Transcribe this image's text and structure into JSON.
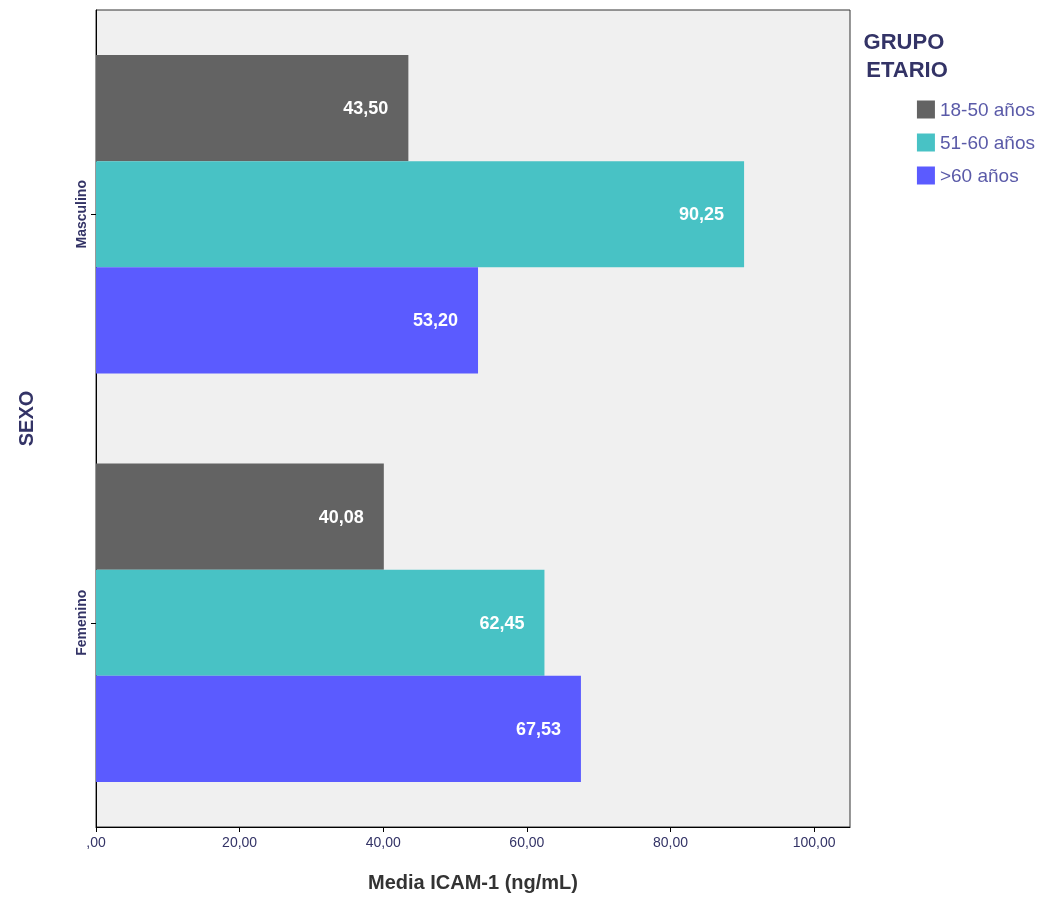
{
  "chart_data": {
    "type": "bar",
    "orientation": "horizontal",
    "xlabel": "Media ICAM-1 (ng/mL)",
    "ylabel": "SEXO",
    "legend_title": "GRUPO ETARIO",
    "categories": [
      "Masculino",
      "Femenino"
    ],
    "series": [
      {
        "name": "18-50 años",
        "color": "#636363",
        "values": [
          43.5,
          40.08
        ],
        "value_labels": [
          "43,50",
          "40,08"
        ]
      },
      {
        "name": "51-60 años",
        "color": "#48c2c5",
        "values": [
          90.25,
          62.45
        ],
        "value_labels": [
          "90,25",
          "62,45"
        ]
      },
      {
        "name": ">60 años",
        "color": "#5b5bff",
        "values": [
          53.2,
          67.53
        ],
        "value_labels": [
          "53,20",
          "67,53"
        ]
      }
    ],
    "xlim": [
      0,
      105
    ],
    "xticks": [
      {
        "value": 0,
        "label": ",00"
      },
      {
        "value": 20,
        "label": "20,00"
      },
      {
        "value": 40,
        "label": "40,00"
      },
      {
        "value": 60,
        "label": "60,00"
      },
      {
        "value": 80,
        "label": "80,00"
      },
      {
        "value": 100,
        "label": "100,00"
      }
    ],
    "grid": false,
    "legend": "top right"
  }
}
